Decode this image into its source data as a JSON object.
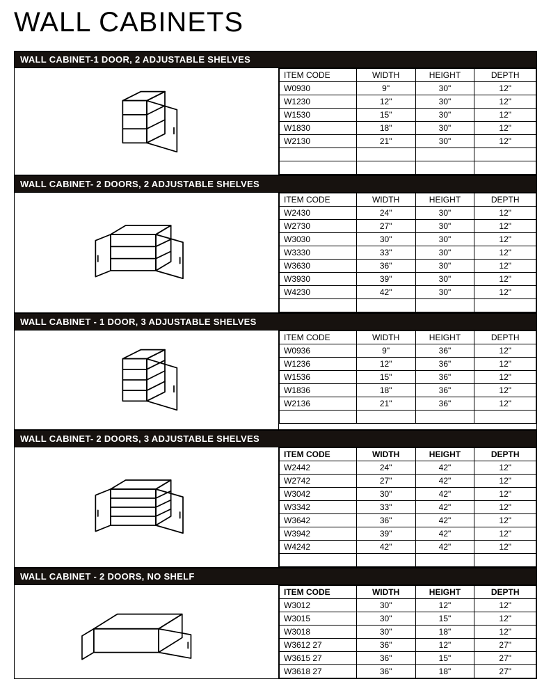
{
  "page": {
    "title": "WALL CABINETS",
    "background_color": "#ffffff",
    "header_bg": "#17120f",
    "header_text_color": "#ffffff",
    "border_color": "#000000",
    "title_fontsize": 40,
    "body_fontsize": 12
  },
  "column_headers": {
    "code": "ITEM CODE",
    "width": "WIDTH",
    "height": "HEIGHT",
    "depth": "DEPTH"
  },
  "sections": [
    {
      "title": "WALL CABINET-1 DOOR, 2 ADJUSTABLE SHELVES",
      "header_bold": false,
      "illustration": "single-door-2-shelf",
      "empty_rows_after": 2,
      "rows": [
        {
          "code": "W0930",
          "width": "9\"",
          "height": "30\"",
          "depth": "12\""
        },
        {
          "code": "W1230",
          "width": "12\"",
          "height": "30\"",
          "depth": "12\""
        },
        {
          "code": "W1530",
          "width": "15\"",
          "height": "30\"",
          "depth": "12\""
        },
        {
          "code": "W1830",
          "width": "18\"",
          "height": "30\"",
          "depth": "12\""
        },
        {
          "code": "W2130",
          "width": "21\"",
          "height": "30\"",
          "depth": "12\""
        }
      ]
    },
    {
      "title": "WALL CABINET- 2 DOORS, 2 ADJUSTABLE SHELVES",
      "header_bold": false,
      "illustration": "double-door-2-shelf",
      "empty_rows_after": 1,
      "rows": [
        {
          "code": "W2430",
          "width": "24\"",
          "height": "30\"",
          "depth": "12\""
        },
        {
          "code": "W2730",
          "width": "27\"",
          "height": "30\"",
          "depth": "12\""
        },
        {
          "code": "W3030",
          "width": "30\"",
          "height": "30\"",
          "depth": "12\""
        },
        {
          "code": "W3330",
          "width": "33\"",
          "height": "30\"",
          "depth": "12\""
        },
        {
          "code": "W3630",
          "width": "36\"",
          "height": "30\"",
          "depth": "12\""
        },
        {
          "code": "W3930",
          "width": "39\"",
          "height": "30\"",
          "depth": "12\""
        },
        {
          "code": "W4230",
          "width": "42\"",
          "height": "30\"",
          "depth": "12\""
        }
      ]
    },
    {
      "title": "WALL CABINET - 1 DOOR, 3 ADJUSTABLE SHELVES",
      "header_bold": false,
      "illustration": "single-door-3-shelf",
      "empty_rows_after": 1,
      "rows": [
        {
          "code": "W0936",
          "width": "9\"",
          "height": "36\"",
          "depth": "12\""
        },
        {
          "code": "W1236",
          "width": "12\"",
          "height": "36\"",
          "depth": "12\""
        },
        {
          "code": "W1536",
          "width": "15\"",
          "height": "36\"",
          "depth": "12\""
        },
        {
          "code": "W1836",
          "width": "18\"",
          "height": "36\"",
          "depth": "12\""
        },
        {
          "code": "W2136",
          "width": "21\"",
          "height": "36\"",
          "depth": "12\""
        }
      ]
    },
    {
      "title": "WALL CABINET- 2 DOORS, 3 ADJUSTABLE SHELVES",
      "header_bold": true,
      "illustration": "double-door-3-shelf",
      "empty_rows_after": 1,
      "rows": [
        {
          "code": "W2442",
          "width": "24\"",
          "height": "42\"",
          "depth": "12\""
        },
        {
          "code": "W2742",
          "width": "27\"",
          "height": "42\"",
          "depth": "12\""
        },
        {
          "code": "W3042",
          "width": "30\"",
          "height": "42\"",
          "depth": "12\""
        },
        {
          "code": "W3342",
          "width": "33\"",
          "height": "42\"",
          "depth": "12\""
        },
        {
          "code": "W3642",
          "width": "36\"",
          "height": "42\"",
          "depth": "12\""
        },
        {
          "code": "W3942",
          "width": "39\"",
          "height": "42\"",
          "depth": "12\""
        },
        {
          "code": "W4242",
          "width": "42\"",
          "height": "42\"",
          "depth": "12\""
        }
      ]
    },
    {
      "title": "WALL CABINET - 2 DOORS, NO SHELF",
      "header_bold": true,
      "illustration": "double-door-no-shelf",
      "empty_rows_after": 0,
      "rows": [
        {
          "code": "W3012",
          "width": "30\"",
          "height": "12\"",
          "depth": "12\""
        },
        {
          "code": "W3015",
          "width": "30\"",
          "height": "15\"",
          "depth": "12\""
        },
        {
          "code": "W3018",
          "width": "30\"",
          "height": "18\"",
          "depth": "12\""
        },
        {
          "code": "W3612 27",
          "width": "36\"",
          "height": "12\"",
          "depth": "27\""
        },
        {
          "code": "W3615 27",
          "width": "36\"",
          "height": "15\"",
          "depth": "27\""
        },
        {
          "code": "W3618 27",
          "width": "36\"",
          "height": "18\"",
          "depth": "27\""
        }
      ]
    }
  ]
}
